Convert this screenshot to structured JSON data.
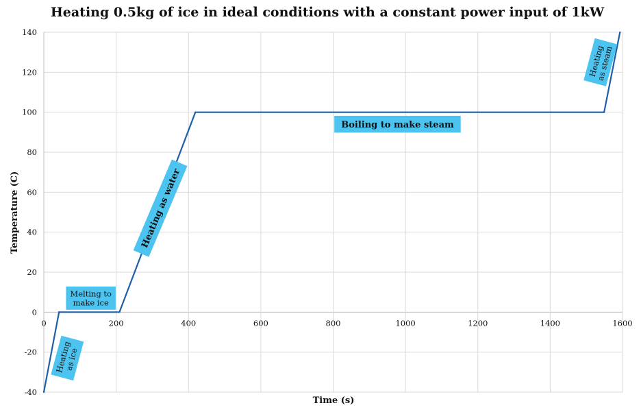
{
  "chart_data": {
    "type": "line",
    "title": "Heating 0.5kg of ice in ideal conditions with a constant power input of 1kW",
    "xlabel": "Time (s)",
    "ylabel": "Temperature (C)",
    "xlim": [
      0,
      1600
    ],
    "ylim": [
      -40,
      140
    ],
    "x_ticks": [
      0,
      200,
      400,
      600,
      800,
      1000,
      1200,
      1400,
      1600
    ],
    "y_ticks": [
      -40,
      -20,
      0,
      20,
      40,
      60,
      80,
      100,
      120,
      140
    ],
    "grid": true,
    "line_color": "#1f5fa8",
    "series": [
      {
        "x": [
          0,
          42,
          209,
          419,
          1549,
          1593
        ],
        "y": [
          -40,
          0,
          0,
          100,
          100,
          140
        ]
      }
    ],
    "annotations": [
      {
        "id": "heating-as-ice",
        "lines": [
          "Heating",
          "as ice"
        ],
        "x": 65,
        "y": -23,
        "rotation": -75,
        "bold": false
      },
      {
        "id": "melting",
        "lines": [
          "Melting to",
          "make ice"
        ],
        "x": 130,
        "y": 7,
        "rotation": 0,
        "bold": false
      },
      {
        "id": "heating-as-water",
        "lines": [
          "Heating as water"
        ],
        "x": 322,
        "y": 52,
        "rotation": -67,
        "bold": true
      },
      {
        "id": "boiling",
        "lines": [
          "Boiling to make steam"
        ],
        "x": 978,
        "y": 94,
        "rotation": 0,
        "bold": true
      },
      {
        "id": "heating-as-steam",
        "lines": [
          "Heating",
          "as steam"
        ],
        "x": 1539,
        "y": 125,
        "rotation": -75,
        "bold": false
      }
    ],
    "annotation_color": "#4dc3ef"
  }
}
